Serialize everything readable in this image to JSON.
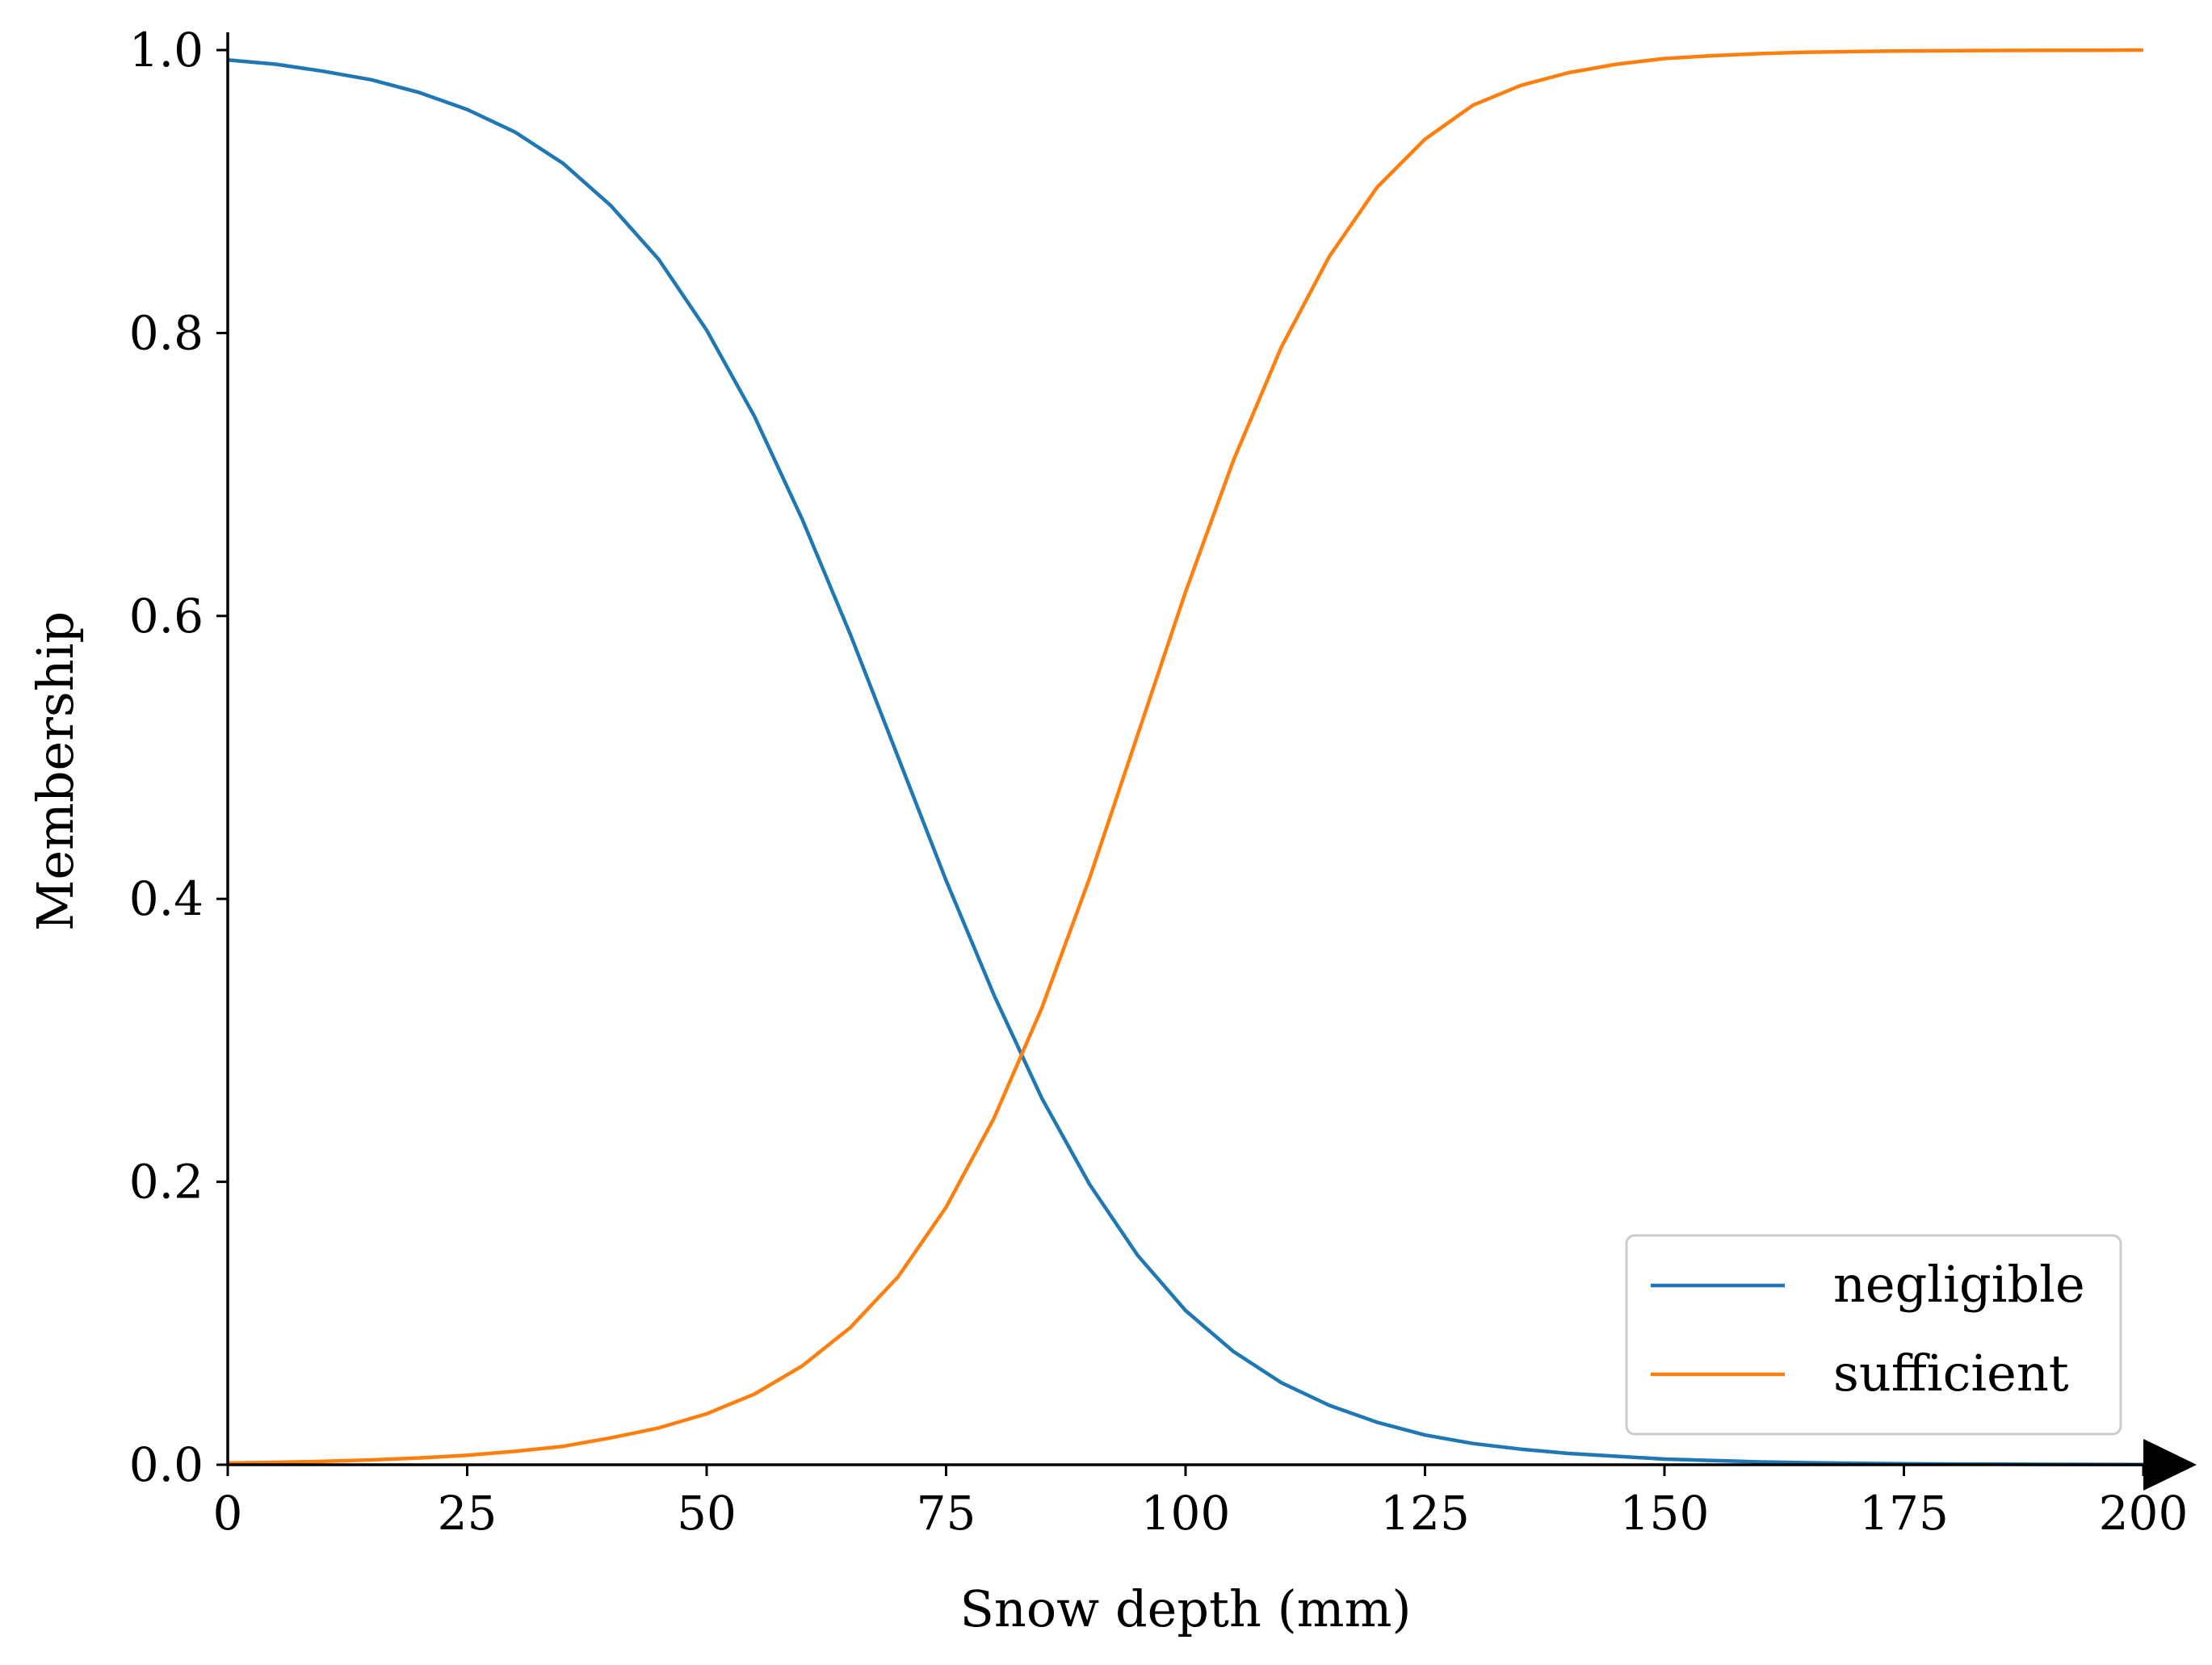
{
  "chart_data": {
    "type": "line",
    "title": "",
    "xlabel": "Snow depth (mm)",
    "ylabel": "Membership",
    "xlim": [
      0,
      200
    ],
    "ylim": [
      0,
      1.0
    ],
    "xticks": [
      0,
      25,
      50,
      75,
      100,
      125,
      150,
      175,
      200
    ],
    "yticks": [
      0.0,
      0.2,
      0.4,
      0.6,
      0.8,
      1.0
    ],
    "xtick_labels": [
      "0",
      "25",
      "50",
      "75",
      "100",
      "125",
      "150",
      "175",
      "200"
    ],
    "ytick_labels": [
      "0.0",
      "0.2",
      "0.4",
      "0.6",
      "0.8",
      "1.0"
    ],
    "grid": false,
    "legend_position": "bottom-right",
    "x": [
      0,
      5,
      10,
      15,
      20,
      25,
      30,
      35,
      40,
      45,
      50,
      55,
      60,
      65,
      70,
      75,
      80,
      85,
      90,
      95,
      100,
      105,
      110,
      115,
      120,
      125,
      130,
      135,
      140,
      145,
      150,
      155,
      160,
      165,
      170,
      175,
      180,
      185,
      190,
      195,
      200
    ],
    "series": [
      {
        "name": "negligible",
        "color": "#1f77b4",
        "values": [
          0.993,
          0.99,
          0.985,
          0.979,
          0.97,
          0.958,
          0.942,
          0.92,
          0.89,
          0.852,
          0.802,
          0.741,
          0.668,
          0.587,
          0.5,
          0.413,
          0.332,
          0.259,
          0.198,
          0.148,
          0.109,
          0.08,
          0.058,
          0.042,
          0.03,
          0.021,
          0.015,
          0.011,
          0.008,
          0.006,
          0.004,
          0.003,
          0.002,
          0.0014,
          0.001,
          0.0007,
          0.0005,
          0.0004,
          0.0003,
          0.0002,
          0.0001
        ]
      },
      {
        "name": "sufficient",
        "color": "#ff7f0e",
        "values": [
          0.0012,
          0.0017,
          0.0024,
          0.0034,
          0.0048,
          0.0067,
          0.0095,
          0.013,
          0.019,
          0.026,
          0.036,
          0.05,
          0.07,
          0.097,
          0.133,
          0.182,
          0.245,
          0.323,
          0.415,
          0.516,
          0.617,
          0.71,
          0.79,
          0.854,
          0.903,
          0.937,
          0.961,
          0.975,
          0.984,
          0.99,
          0.994,
          0.996,
          0.9975,
          0.9985,
          0.999,
          0.9994,
          0.9996,
          0.9997,
          0.9998,
          0.9999,
          1.0
        ]
      }
    ]
  }
}
